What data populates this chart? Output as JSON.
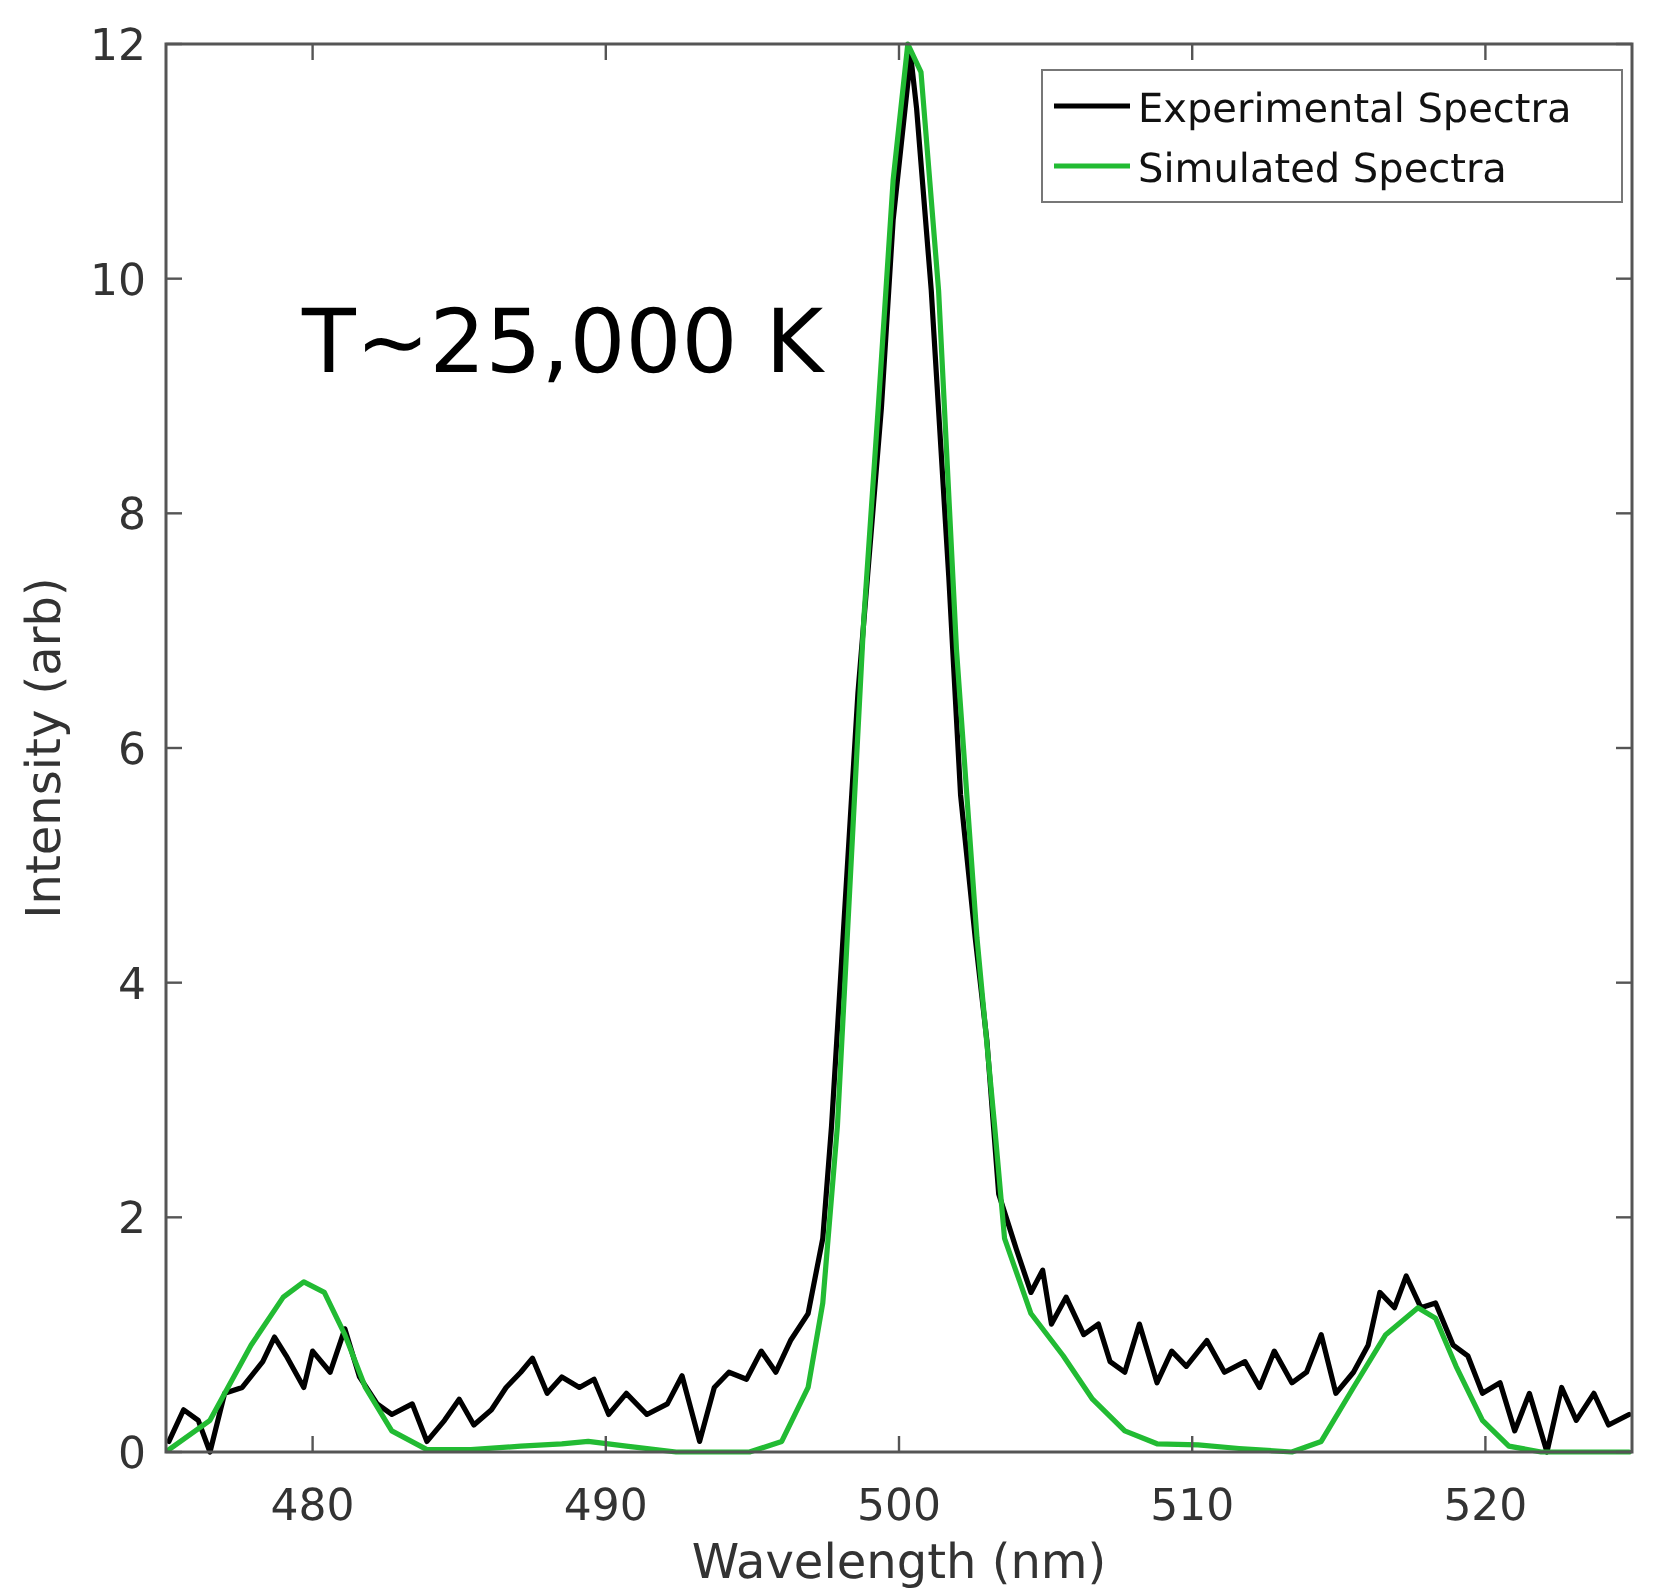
{
  "chart_data": {
    "type": "line",
    "xlabel": "Wavelength (nm)",
    "ylabel": "Intensity (arb)",
    "xlim": [
      475,
      525
    ],
    "ylim": [
      0,
      12
    ],
    "xticks": [
      480,
      490,
      500,
      510,
      520
    ],
    "yticks": [
      0,
      2,
      4,
      6,
      8,
      10,
      12
    ],
    "grid": false,
    "legend": "top right",
    "marker": "none",
    "line_style": "solid",
    "annotations": [
      "T~25,000 K"
    ],
    "series": [
      {
        "name": "Experimental Spectra",
        "color": "#000000",
        "x": [
          475.1,
          475.6,
          476.1,
          476.5,
          477.0,
          477.6,
          478.3,
          478.7,
          479.1,
          479.7,
          480.0,
          480.6,
          481.1,
          481.6,
          482.2,
          482.7,
          483.4,
          483.9,
          484.5,
          485.0,
          485.5,
          486.1,
          486.6,
          487.1,
          487.5,
          488.0,
          488.5,
          489.1,
          489.6,
          490.1,
          490.7,
          491.4,
          492.1,
          492.6,
          493.2,
          493.7,
          494.2,
          494.8,
          495.3,
          495.8,
          496.3,
          496.9,
          497.4,
          497.7,
          498.6,
          499.4,
          499.8,
          500.4,
          500.6,
          501.1,
          501.7,
          502.1,
          502.6,
          503.0,
          503.4,
          504.0,
          504.5,
          504.9,
          505.2,
          505.7,
          506.3,
          506.8,
          507.2,
          507.7,
          508.2,
          508.8,
          509.3,
          509.8,
          510.5,
          511.1,
          511.8,
          512.3,
          512.8,
          513.4,
          513.9,
          514.4,
          514.9,
          515.5,
          516.0,
          516.4,
          516.9,
          517.3,
          517.8,
          518.3,
          518.9,
          519.4,
          519.9,
          520.5,
          521.0,
          521.5,
          522.1,
          522.6,
          523.1,
          523.7,
          524.2,
          524.9
        ],
        "values": [
          0.09,
          0.36,
          0.27,
          0,
          0.5,
          0.55,
          0.77,
          0.98,
          0.82,
          0.55,
          0.86,
          0.68,
          1.05,
          0.64,
          0.41,
          0.32,
          0.41,
          0.09,
          0.27,
          0.45,
          0.23,
          0.36,
          0.55,
          0.68,
          0.8,
          0.5,
          0.64,
          0.55,
          0.62,
          0.32,
          0.5,
          0.32,
          0.41,
          0.65,
          0.09,
          0.55,
          0.68,
          0.62,
          0.86,
          0.68,
          0.95,
          1.18,
          1.82,
          2.78,
          6.47,
          8.9,
          10.5,
          11.9,
          11.45,
          9.9,
          7.45,
          5.6,
          4.38,
          3.5,
          2.2,
          1.73,
          1.36,
          1.55,
          1.09,
          1.32,
          1.0,
          1.09,
          0.77,
          0.68,
          1.09,
          0.59,
          0.86,
          0.73,
          0.95,
          0.68,
          0.77,
          0.55,
          0.86,
          0.59,
          0.68,
          1.0,
          0.5,
          0.68,
          0.91,
          1.36,
          1.23,
          1.5,
          1.23,
          1.27,
          0.91,
          0.82,
          0.5,
          0.59,
          0.18,
          0.5,
          0,
          0.55,
          0.27,
          0.5,
          0.23,
          0.32
        ]
      },
      {
        "name": "Simulated Spectra",
        "color": "#22bb33",
        "x": [
          475.1,
          476.5,
          477.9,
          479.0,
          479.7,
          480.4,
          481.1,
          481.8,
          482.7,
          483.9,
          485.4,
          487.1,
          488.5,
          489.4,
          490.7,
          492.4,
          494.9,
          496.0,
          496.9,
          497.4,
          497.9,
          498.8,
          499.3,
          499.8,
          500.3,
          500.75,
          501.35,
          501.96,
          502.66,
          503.26,
          503.6,
          504.5,
          505.6,
          506.6,
          507.7,
          508.8,
          510.2,
          511.6,
          513.4,
          514.4,
          515.5,
          516.6,
          517.7,
          518.3,
          519.0,
          519.9,
          520.8,
          521.9,
          524.9
        ],
        "values": [
          0.02,
          0.27,
          0.91,
          1.32,
          1.45,
          1.36,
          1.0,
          0.55,
          0.18,
          0.02,
          0.02,
          0.05,
          0.07,
          0.09,
          0.05,
          0,
          0,
          0.09,
          0.55,
          1.27,
          2.78,
          7.1,
          8.93,
          10.84,
          12.0,
          11.76,
          9.9,
          6.84,
          4.38,
          2.78,
          1.82,
          1.18,
          0.82,
          0.45,
          0.18,
          0.07,
          0.06,
          0.03,
          0,
          0.09,
          0.55,
          1.0,
          1.23,
          1.14,
          0.73,
          0.27,
          0.05,
          0,
          0
        ]
      }
    ]
  }
}
